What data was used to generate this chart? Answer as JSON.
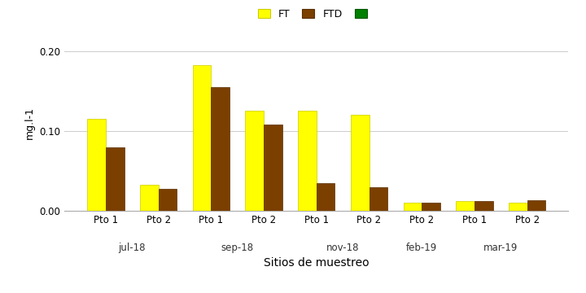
{
  "groups": [
    {
      "label": "Pto 1",
      "period": "jul-18",
      "FT": 0.115,
      "FTD": 0.08
    },
    {
      "label": "Pto 2",
      "period": "jul-18",
      "FT": 0.033,
      "FTD": 0.028
    },
    {
      "label": "Pto 1",
      "period": "sep-18",
      "FT": 0.183,
      "FTD": 0.155
    },
    {
      "label": "Pto 2",
      "period": "sep-18",
      "FT": 0.125,
      "FTD": 0.108
    },
    {
      "label": "Pto 1",
      "period": "nov-18",
      "FT": 0.125,
      "FTD": 0.035
    },
    {
      "label": "Pto 2",
      "period": "nov-18",
      "FT": 0.12,
      "FTD": 0.03
    },
    {
      "label": "Pto 2",
      "period": "feb-19",
      "FT": 0.01,
      "FTD": 0.01
    },
    {
      "label": "Pto 1",
      "period": "mar-19",
      "FT": 0.012,
      "FTD": 0.012
    },
    {
      "label": "Pto 2",
      "period": "mar-19",
      "FT": 0.01,
      "FTD": 0.013
    }
  ],
  "color_FT": "#FFFF00",
  "color_FTD": "#7B3F00",
  "color_FTD2": "#008000",
  "color_FT_edge": "#cccc00",
  "color_FTD_edge": "#5a2d00",
  "color_FTD2_edge": "#005500",
  "ylabel": "mg.l-1",
  "xlabel": "Sitios de muestreo",
  "ylim": [
    0.0,
    0.22
  ],
  "yticks": [
    0.0,
    0.1,
    0.2
  ],
  "bar_width": 0.35,
  "period_labels": [
    "jul-18",
    "sep-18",
    "nov-18",
    "feb-19",
    "mar-19"
  ],
  "period_group_sizes": [
    2,
    2,
    2,
    1,
    2
  ],
  "background_color": "#ffffff",
  "legend_labels": [
    "FT",
    "FTD",
    ""
  ],
  "axis_fontsize": 9,
  "legend_fontsize": 9,
  "tick_fontsize": 8.5,
  "xlabel_fontsize": 10
}
